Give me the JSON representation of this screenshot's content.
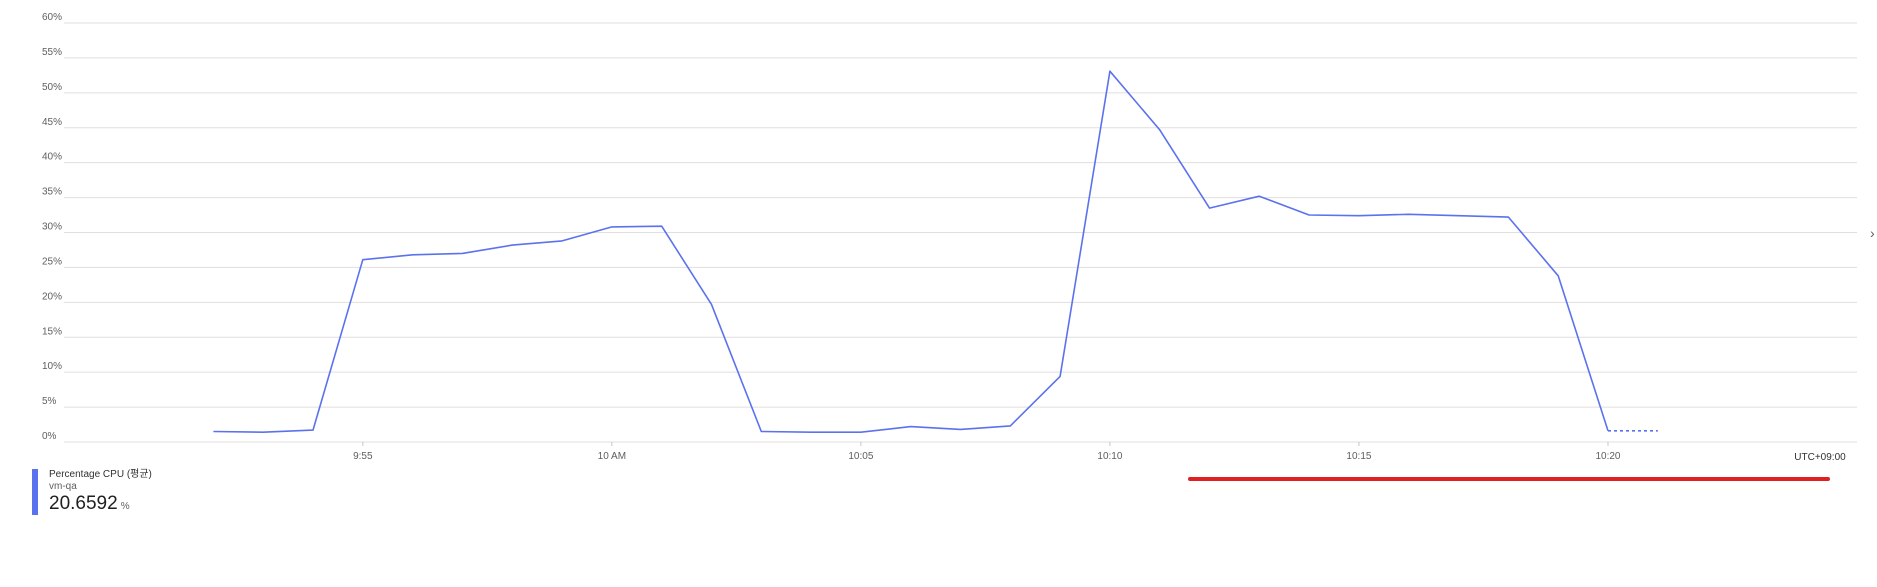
{
  "chart_data": {
    "type": "line",
    "title": "",
    "xlabel": "",
    "ylabel": "",
    "ylim": [
      0,
      60
    ],
    "y_ticks": [
      0,
      5,
      10,
      15,
      20,
      25,
      30,
      35,
      40,
      45,
      50,
      55,
      60
    ],
    "y_tick_labels": [
      "0%",
      "5%",
      "10%",
      "15%",
      "20%",
      "25%",
      "30%",
      "35%",
      "40%",
      "45%",
      "50%",
      "55%",
      "60%"
    ],
    "x_range": [
      "09:49",
      "10:25"
    ],
    "x_ticks": [
      "09:55",
      "10:00",
      "10:05",
      "10:10",
      "10:15",
      "10:20"
    ],
    "x_tick_labels": [
      "9:55",
      "10 AM",
      "10:05",
      "10:10",
      "10:15",
      "10:20"
    ],
    "timezone_label": "UTC+09:00",
    "grid": true,
    "line_color": "#5b72ee",
    "series": [
      {
        "name": "Percentage CPU (평균)",
        "x": [
          "09:52",
          "09:53",
          "09:54",
          "09:55",
          "09:56",
          "09:57",
          "09:58",
          "09:59",
          "10:00",
          "10:01",
          "10:02",
          "10:03",
          "10:04",
          "10:05",
          "10:06",
          "10:07",
          "10:08",
          "10:09",
          "10:10",
          "10:11",
          "10:12",
          "10:13",
          "10:14",
          "10:15",
          "10:16",
          "10:17",
          "10:18",
          "10:19",
          "10:20",
          "10:21"
        ],
        "values": [
          1.5,
          1.4,
          1.7,
          26.1,
          26.8,
          27.0,
          28.2,
          28.8,
          30.8,
          30.9,
          19.7,
          1.5,
          1.4,
          1.4,
          2.2,
          1.8,
          2.3,
          9.4,
          53.1,
          44.7,
          33.5,
          35.2,
          32.5,
          32.4,
          32.6,
          32.4,
          32.2,
          23.8,
          1.6,
          1.6
        ],
        "dashed_from": "10:20",
        "dashed_to": "10:21"
      }
    ]
  },
  "legend": {
    "metric": "Percentage CPU (평균)",
    "resource": "vm-qa",
    "value": "20.6592",
    "unit": "%",
    "color": "#5b72ee"
  },
  "ui": {
    "chevron_icon": "chevron-right-icon",
    "highlight_color": "#e02020"
  }
}
